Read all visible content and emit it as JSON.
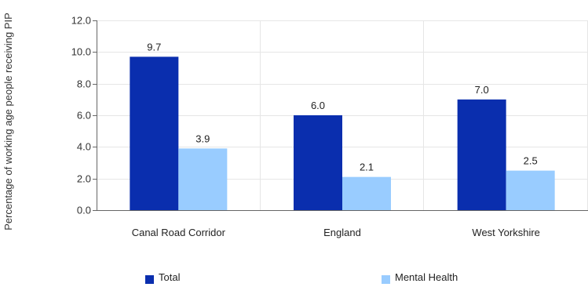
{
  "chart_data": {
    "type": "bar",
    "ylabel": "Percentage of working age people receiving PIP",
    "xlabel": "",
    "categories": [
      "Canal Road Corridor",
      "England",
      "West Yorkshire"
    ],
    "series": [
      {
        "name": "Total",
        "color": "#0a2eae",
        "values": [
          9.7,
          6.0,
          7.0
        ],
        "labels": [
          "9.7",
          "6.0",
          "7.0"
        ]
      },
      {
        "name": "Mental Health",
        "color": "#99ccff",
        "values": [
          3.9,
          2.1,
          2.5
        ],
        "labels": [
          "3.9",
          "2.1",
          "2.5"
        ]
      }
    ],
    "ylim": [
      0,
      12
    ],
    "yticks": [
      "0.0",
      "2.0",
      "4.0",
      "6.0",
      "8.0",
      "10.0",
      "12.0"
    ],
    "grid": true,
    "legend_position": "bottom"
  }
}
